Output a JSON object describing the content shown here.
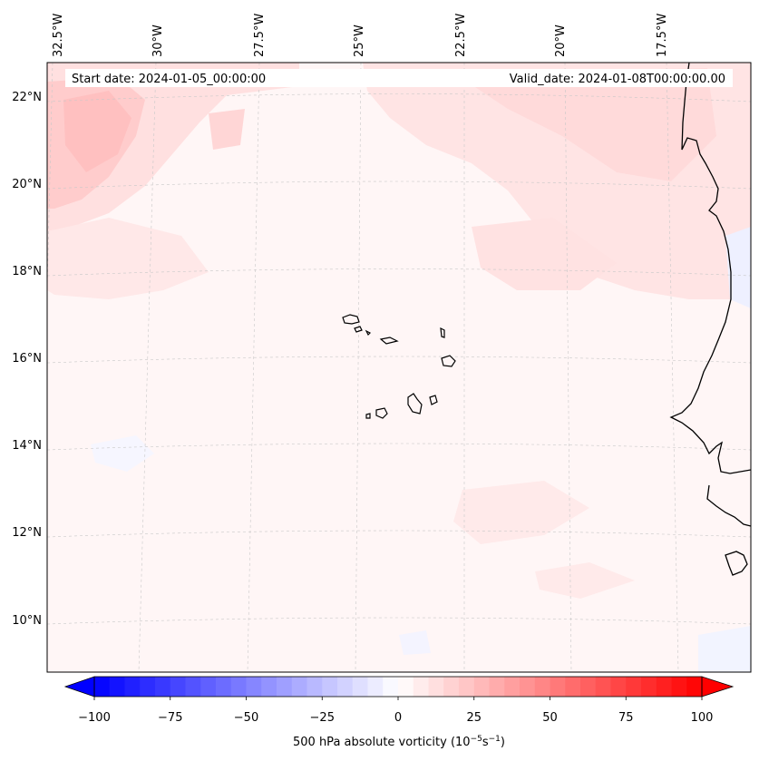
{
  "header": {
    "start_date": "Start date: 2024-01-05_00:00:00",
    "valid_date": "Valid_date: 2024-01-08T00:00:00.00"
  },
  "map": {
    "lon_labels": [
      "32.5°W",
      "30°W",
      "27.5°W",
      "25°W",
      "22.5°W",
      "20°W",
      "17.5°W"
    ],
    "lat_labels": [
      "22°N",
      "20°N",
      "18°N",
      "16°N",
      "14°N",
      "12°N",
      "10°N"
    ],
    "field": "500 hPa absolute vorticity",
    "features": [
      "Cape Verde islands",
      "West African coastline"
    ]
  },
  "colorbar": {
    "label_prefix": "500 hPa absolute vorticity (10",
    "label_exp1": "−5",
    "label_mid": "s",
    "label_exp2": "−1",
    "label_suffix": ")",
    "ticks": [
      "−100",
      "−75",
      "−50",
      "−25",
      "0",
      "25",
      "50",
      "75",
      "100"
    ],
    "min": -100,
    "max": 100,
    "step": 5,
    "low_color": "#0000ff",
    "mid_color": "#ffffff",
    "high_color": "#ff0000"
  }
}
